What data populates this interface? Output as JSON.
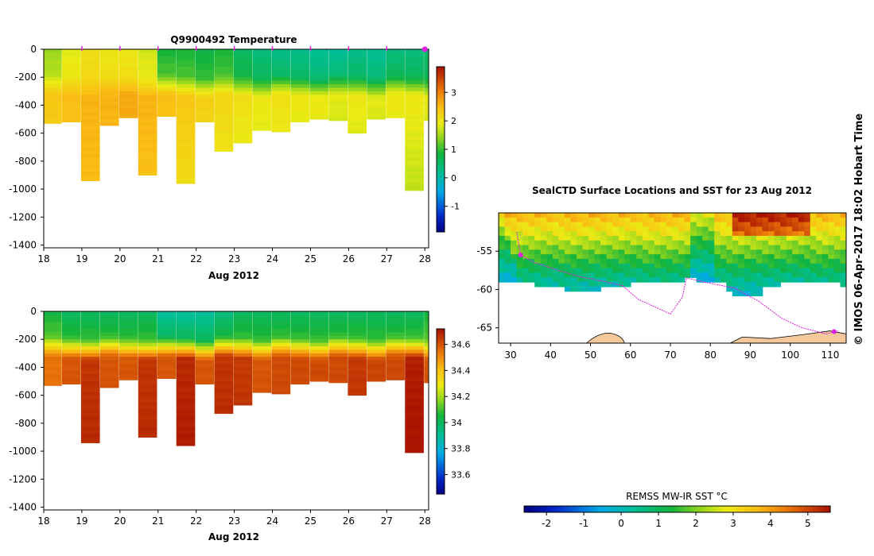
{
  "credit": "© IMOS 06-Apr-2017 18:02 Hobart Time",
  "chart_data": [
    {
      "type": "heatmap",
      "name": "temperature-section",
      "title": "Q9900492  Temperature",
      "xlabel": "Aug 2012",
      "xlim": [
        18,
        28.1
      ],
      "x_ticks": [
        18,
        19,
        20,
        21,
        22,
        23,
        24,
        25,
        26,
        27,
        28
      ],
      "ylim": [
        -1420,
        0
      ],
      "y_ticks": [
        0,
        -200,
        -400,
        -600,
        -800,
        -1000,
        -1200,
        -1400
      ],
      "colorbar": {
        "min": -1.9,
        "max": 3.9,
        "ticks": [
          3,
          2,
          1,
          0,
          -1
        ]
      },
      "profile_markers_x": [
        19,
        20,
        21,
        22,
        23,
        24,
        25,
        26,
        27,
        28
      ],
      "profiles_x": [
        18.0,
        18.5,
        19.0,
        19.5,
        20.0,
        20.5,
        21.0,
        21.5,
        22.0,
        22.5,
        23.0,
        23.5,
        24.0,
        24.5,
        25.0,
        25.5,
        26.0,
        26.5,
        27.0,
        27.5,
        28.0
      ],
      "profiles_max_depth": [
        530,
        520,
        940,
        545,
        490,
        900,
        480,
        960,
        520,
        730,
        670,
        580,
        590,
        520,
        500,
        510,
        600,
        500,
        490,
        1010,
        510
      ],
      "profiles_surface_value": [
        1.5,
        1.9,
        2.1,
        2.0,
        2.0,
        1.8,
        0.9,
        0.9,
        0.8,
        0.9,
        0.6,
        0.4,
        0.3,
        0.3,
        0.2,
        0.2,
        0.3,
        0.2,
        0.4,
        0.4,
        0.5
      ],
      "profiles_deep_value": [
        2.4,
        2.5,
        2.6,
        2.6,
        2.7,
        2.6,
        2.5,
        2.4,
        2.3,
        2.2,
        2.1,
        2.0,
        2.1,
        2.0,
        2.0,
        1.9,
        2.0,
        1.9,
        2.0,
        2.0,
        1.9
      ]
    },
    {
      "type": "heatmap",
      "name": "salinity-section",
      "title": "",
      "xlabel": "Aug 2012",
      "xlim": [
        18,
        28.1
      ],
      "x_ticks": [
        18,
        19,
        20,
        21,
        22,
        23,
        24,
        25,
        26,
        27,
        28
      ],
      "ylim": [
        -1420,
        0
      ],
      "y_ticks": [
        0,
        -200,
        -400,
        -600,
        -800,
        -1000,
        -1200,
        -1400
      ],
      "colorbar": {
        "min": 33.45,
        "max": 34.72,
        "ticks": [
          34.6,
          34.4,
          34.2,
          34,
          33.8,
          33.6
        ]
      },
      "profiles_x": [
        18.0,
        18.5,
        19.0,
        19.5,
        20.0,
        20.5,
        21.0,
        21.5,
        22.0,
        22.5,
        23.0,
        23.5,
        24.0,
        24.5,
        25.0,
        25.5,
        26.0,
        26.5,
        27.0,
        27.5,
        28.0
      ],
      "profiles_max_depth": [
        530,
        520,
        940,
        545,
        490,
        900,
        480,
        960,
        520,
        730,
        670,
        580,
        590,
        520,
        500,
        510,
        600,
        500,
        490,
        1010,
        510
      ],
      "profiles_surface_value": [
        34.05,
        34.0,
        34.0,
        34.0,
        34.0,
        34.0,
        33.9,
        33.9,
        33.9,
        33.95,
        34.0,
        34.0,
        34.0,
        34.0,
        34.0,
        34.0,
        34.0,
        34.0,
        34.0,
        34.0,
        34.05
      ],
      "profiles_deep_value": [
        34.55,
        34.6,
        34.66,
        34.6,
        34.6,
        34.66,
        34.6,
        34.68,
        34.6,
        34.66,
        34.65,
        34.6,
        34.62,
        34.62,
        34.62,
        34.62,
        34.65,
        34.63,
        34.62,
        34.7,
        34.6
      ]
    },
    {
      "type": "heatmap",
      "name": "sst-map",
      "title": "SealCTD Surface Locations and SST for 23 Aug 2012",
      "xlim": [
        27,
        114
      ],
      "x_ticks": [
        30,
        40,
        50,
        60,
        70,
        80,
        90,
        100,
        110
      ],
      "ylim": [
        -67,
        -50
      ],
      "y_ticks": [
        -55,
        -60,
        -65
      ],
      "track_lonlat": [
        [
          31.5,
          -52.5
        ],
        [
          32.5,
          -55.5
        ],
        [
          36,
          -56.5
        ],
        [
          42,
          -57.5
        ],
        [
          47,
          -58.3
        ],
        [
          52,
          -58.8
        ],
        [
          58,
          -59.5
        ],
        [
          62,
          -61.3
        ],
        [
          65,
          -62
        ],
        [
          70,
          -63.2
        ],
        [
          73,
          -61
        ],
        [
          74,
          -58.5
        ],
        [
          80,
          -59.2
        ],
        [
          86,
          -59.8
        ],
        [
          92,
          -61.5
        ],
        [
          98,
          -63.8
        ],
        [
          103,
          -65
        ],
        [
          109,
          -65.8
        ],
        [
          112,
          -65.4
        ]
      ],
      "colorbar_label": "REMSS MW-IR SST °C",
      "colorbar": {
        "min": -2.6,
        "max": 5.6,
        "ticks": [
          -2,
          -1,
          0,
          1,
          2,
          3,
          4,
          5
        ]
      }
    }
  ]
}
